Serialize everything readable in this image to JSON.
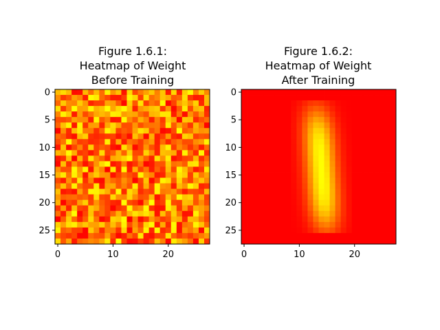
{
  "chart_data": [
    {
      "type": "heatmap",
      "title_lines": [
        "Figure 1.6.1:",
        "Heatmap of Weight",
        "Before Training"
      ],
      "xlabel": "",
      "ylabel": "",
      "grid_size": [
        28,
        28
      ],
      "xlim": [
        -0.5,
        27.5
      ],
      "ylim": [
        27.5,
        -0.5
      ],
      "x_ticks": [
        0,
        10,
        20
      ],
      "y_ticks": [
        0,
        5,
        10,
        15,
        20,
        25
      ],
      "colormap": "autumn",
      "colormap_low": "#ff0000",
      "colormap_high": "#ffff00",
      "pattern": "random_uniform",
      "seed": 1061
    },
    {
      "type": "heatmap",
      "title_lines": [
        "Figure 1.6.2:",
        "Heatmap of Weight",
        "After Training"
      ],
      "xlabel": "",
      "ylabel": "",
      "grid_size": [
        28,
        28
      ],
      "xlim": [
        -0.5,
        27.5
      ],
      "ylim": [
        27.5,
        -0.5
      ],
      "x_ticks": [
        0,
        10,
        20
      ],
      "y_ticks": [
        0,
        5,
        10,
        15,
        20,
        25
      ],
      "colormap": "autumn",
      "colormap_low": "#ff0000",
      "colormap_high": "#ffff00",
      "pattern": "centered_vertical_stroke",
      "stroke_center": [
        14,
        14
      ],
      "stroke_row_range": [
        3,
        24
      ],
      "stroke_col_range": [
        10,
        18
      ]
    }
  ]
}
